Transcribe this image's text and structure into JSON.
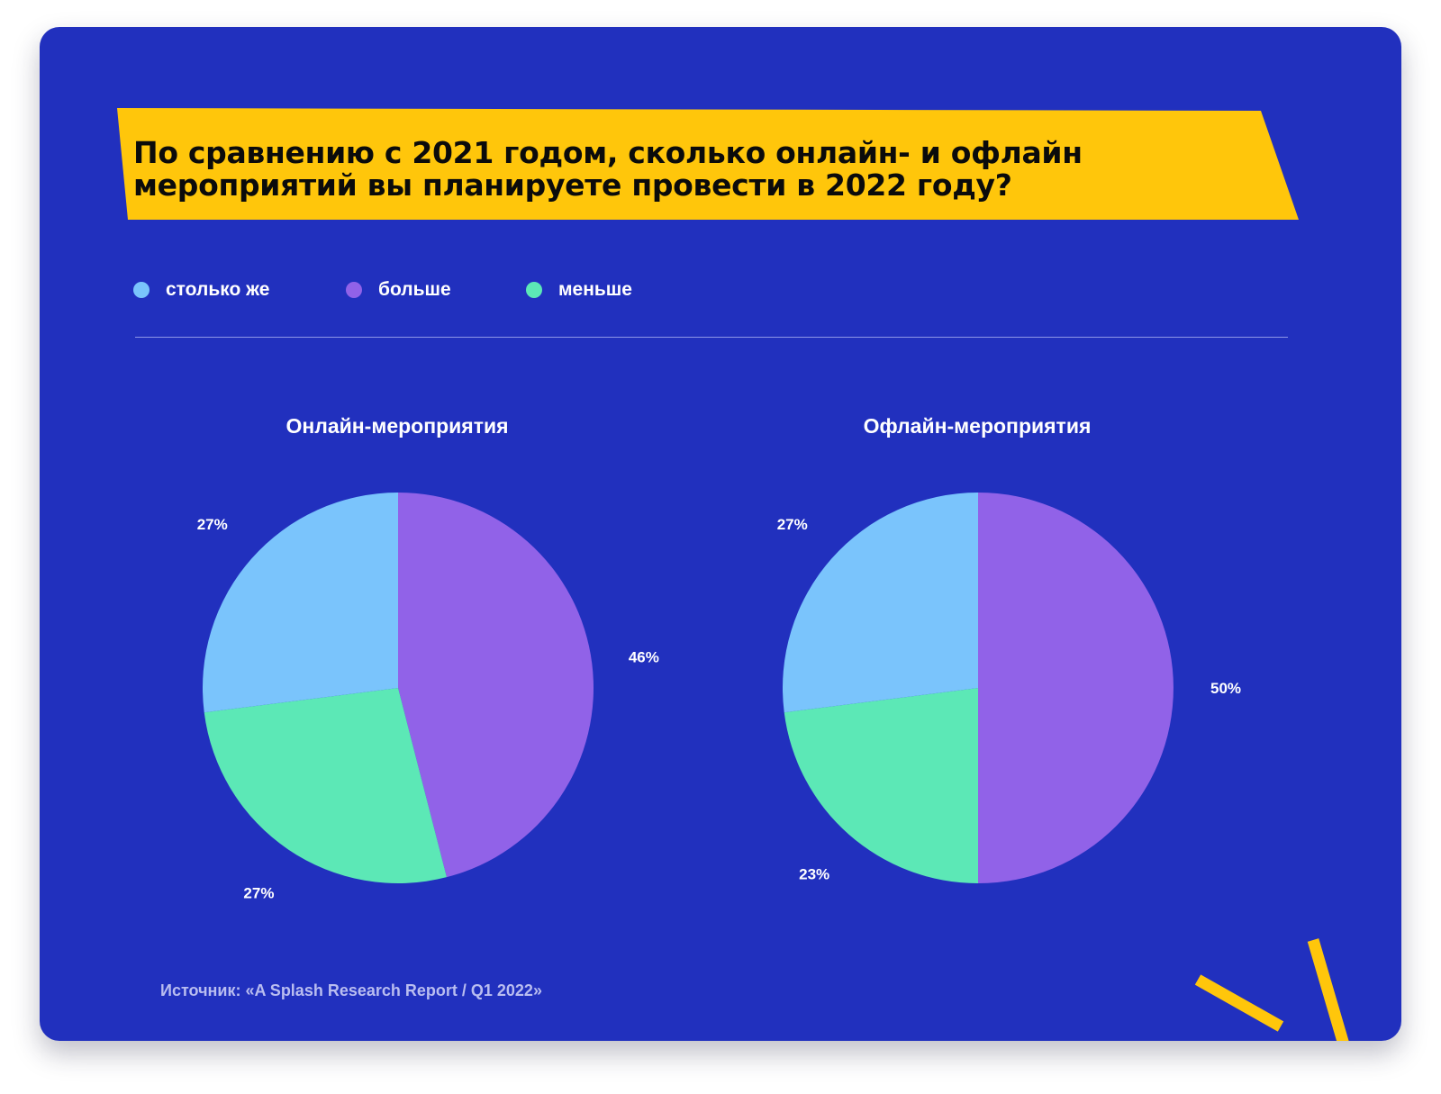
{
  "title": "По сравнению с 2021 годом, сколько онлайн- и офлайн мероприятий вы планируете провести в 2022 году?",
  "legend": [
    {
      "label": "столько же",
      "color": "#7AC4FC"
    },
    {
      "label": "больше",
      "color": "#9162E8"
    },
    {
      "label": "меньше",
      "color": "#5CE8B6"
    }
  ],
  "chart_data": [
    {
      "type": "pie",
      "title": "Онлайн-мероприятия",
      "slices": [
        {
          "name": "больше",
          "value": 46,
          "label": "46%",
          "color": "#9162E8"
        },
        {
          "name": "меньше",
          "value": 27,
          "label": "27%",
          "color": "#5CE8B6"
        },
        {
          "name": "столько же",
          "value": 27,
          "label": "27%",
          "color": "#7AC4FC"
        }
      ]
    },
    {
      "type": "pie",
      "title": "Офлайн-мероприятия",
      "slices": [
        {
          "name": "больше",
          "value": 50,
          "label": "50%",
          "color": "#9162E8"
        },
        {
          "name": "меньше",
          "value": 23,
          "label": "23%",
          "color": "#5CE8B6"
        },
        {
          "name": "столько же",
          "value": 27,
          "label": "27%",
          "color": "#7AC4FC"
        }
      ]
    }
  ],
  "source": "Источник: «A Splash Research Report / Q1 2022»",
  "colors": {
    "background": "#2130BE",
    "banner": "#FFC60B",
    "accent_stripes": "#FFC60B"
  }
}
